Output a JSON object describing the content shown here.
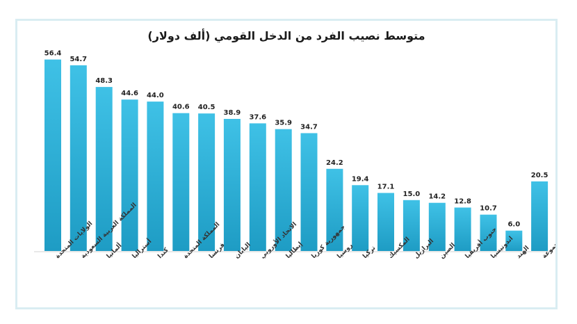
{
  "chart_data": {
    "type": "bar",
    "title": "متوسط نصيب الفرد من الدخل القومي (ألف دولار)",
    "categories": [
      "الولايات المتحدة",
      "المملكة العربية السعودية",
      "ألمانيا",
      "أستراليا",
      "كندا",
      "المملكة المتحدة",
      "فرنسا",
      "اليابان",
      "الاتحاد الأوروبي",
      "إيطاليا",
      "جمهورية كوريا",
      "روسيا",
      "تركيا",
      "المكسيك",
      "البرازيل",
      "الصين",
      "جنوب أفريقيا",
      "اندونيسيا",
      "الهند",
      "المجموعة"
    ],
    "values": [
      56.4,
      54.7,
      48.3,
      44.6,
      44.0,
      40.6,
      40.5,
      38.9,
      37.6,
      35.9,
      34.7,
      24.2,
      19.4,
      17.1,
      15.0,
      14.2,
      12.8,
      10.7,
      6.0,
      20.5
    ],
    "value_labels": [
      "56.4",
      "54.7",
      "48.3",
      "44.6",
      "44.0",
      "40.6",
      "40.5",
      "38.9",
      "37.6",
      "35.9",
      "34.7",
      "24.2",
      "19.4",
      "17.1",
      "15.0",
      "14.2",
      "12.8",
      "10.7",
      "6.0",
      "20.5"
    ],
    "xlabel": "",
    "ylabel": "",
    "ylim": [
      0,
      60
    ],
    "grid": false,
    "legend": "none",
    "colors": {
      "bar_top": "#3fc1e6",
      "bar_bottom": "#1e9cc4",
      "frame": "#d9edf2"
    }
  }
}
